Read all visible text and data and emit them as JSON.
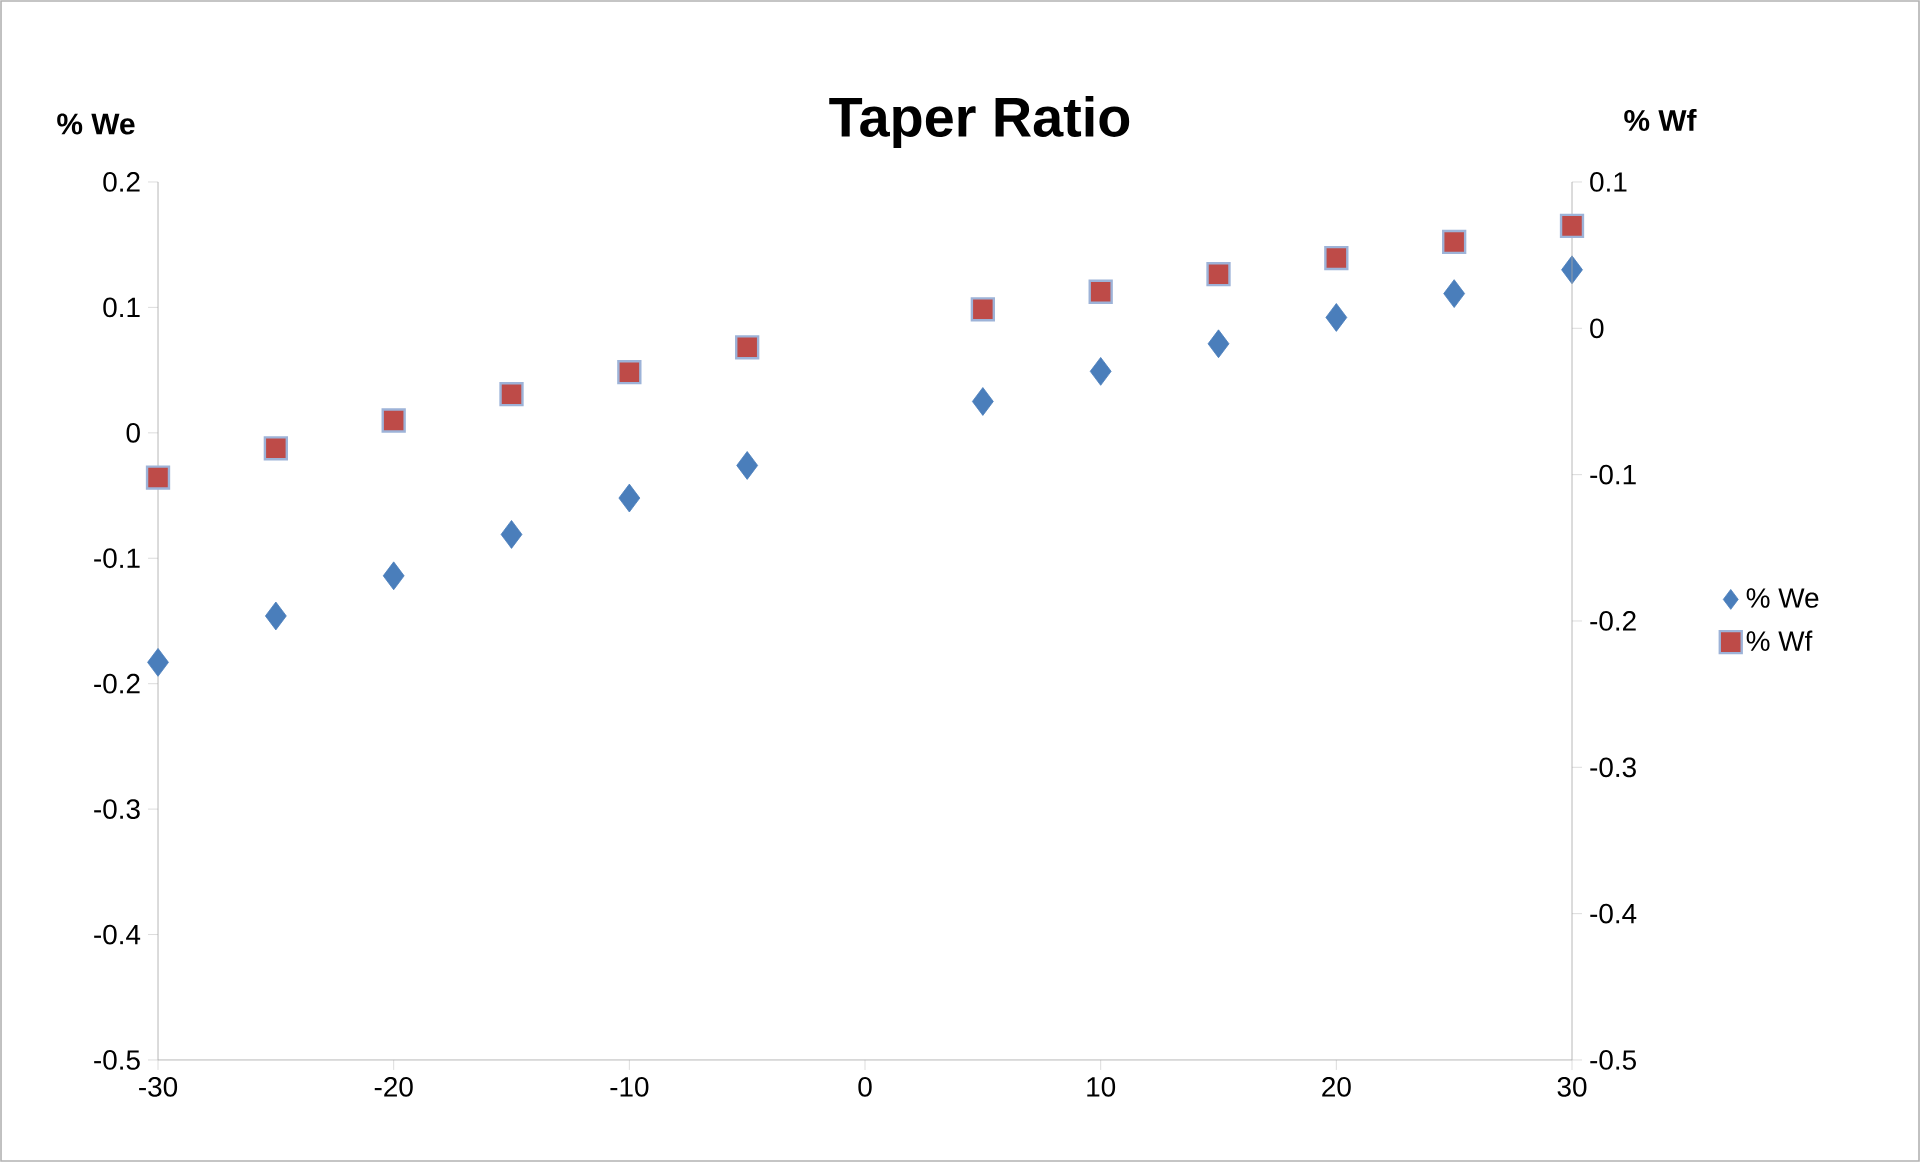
{
  "chart_data": {
    "type": "scatter",
    "title": "Taper Ratio",
    "ylabel": "% We",
    "y2label": "% Wf",
    "x": [
      -30,
      -25,
      -20,
      -15,
      -10,
      -5,
      5,
      10,
      15,
      20,
      25,
      30
    ],
    "xlim": [
      -30,
      30
    ],
    "xticks": [
      -30,
      -20,
      -10,
      0,
      10,
      20,
      30
    ],
    "ylim": [
      -0.5,
      0.2
    ],
    "yticks": [
      -0.5,
      -0.4,
      -0.3,
      -0.2,
      -0.1,
      0,
      0.1,
      0.2
    ],
    "y2lim": [
      -0.5,
      0.1
    ],
    "y2ticks": [
      -0.5,
      -0.4,
      -0.3,
      -0.2,
      -0.1,
      0,
      0.1
    ],
    "legend": "right",
    "series": [
      {
        "name": "% We",
        "color": "#4a7ebb",
        "marker": "diamond",
        "values": [
          -0.183,
          -0.146,
          -0.114,
          -0.081,
          -0.052,
          -0.026,
          0.025,
          0.049,
          0.071,
          0.092,
          0.111,
          0.13
        ]
      },
      {
        "name": "% Wf",
        "color": "#be4b48",
        "marker": "square",
        "axis": "y2",
        "values": [
          -0.102,
          -0.082,
          -0.063,
          -0.045,
          -0.03,
          -0.013,
          0.013,
          0.025,
          0.037,
          0.048,
          0.059,
          0.07
        ]
      }
    ]
  }
}
